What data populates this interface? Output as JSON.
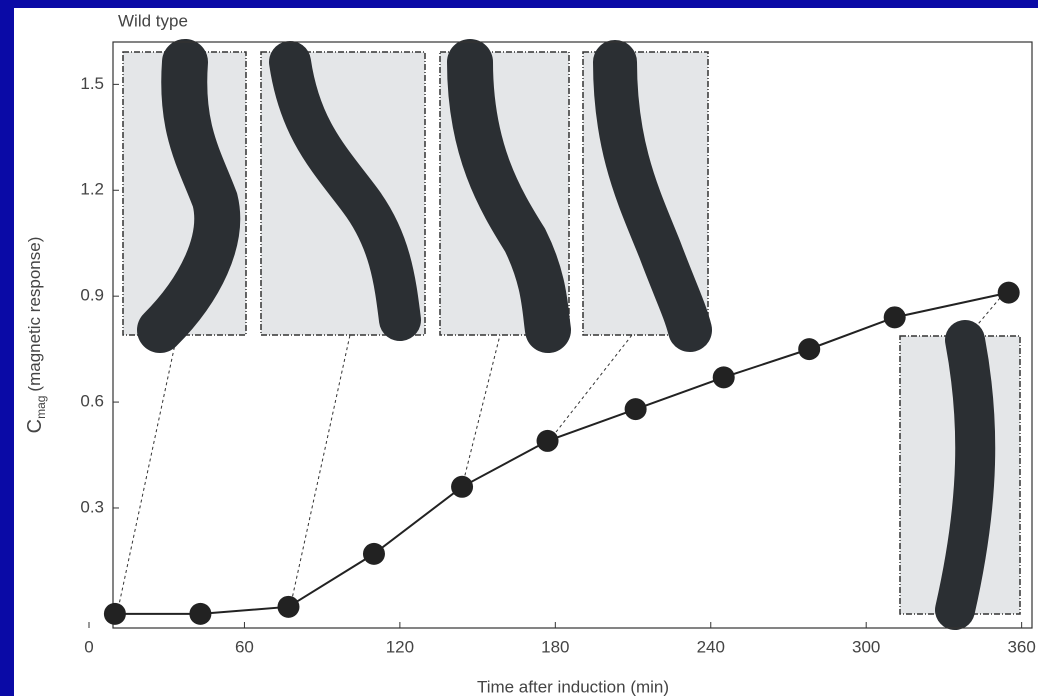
{
  "chart_data": {
    "type": "line",
    "title": "Wild type",
    "x_label": "Time after induction (min)",
    "y_label": "C",
    "y_label_subscript": "mag",
    "y_label_rest": "(magnetic response)",
    "x": [
      10,
      43,
      77,
      110,
      144,
      177,
      211,
      245,
      278,
      311,
      355
    ],
    "series": [
      {
        "color": "#222222",
        "values": [
          0.0,
          0.0,
          0.02,
          0.17,
          0.36,
          0.49,
          0.58,
          0.67,
          0.75,
          0.84,
          0.91
        ]
      }
    ],
    "xlim": [
      0,
      364
    ],
    "xticks": [
      0,
      60,
      120,
      180,
      240,
      300,
      360
    ],
    "ylim": [
      -0.04,
      1.62
    ],
    "yticks": [
      0.3,
      0.6,
      0.9,
      1.2,
      1.5
    ]
  }
}
